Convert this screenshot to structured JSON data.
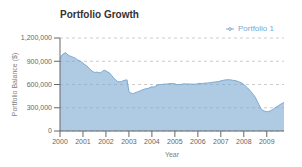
{
  "chart_data": {
    "type": "area",
    "title": "Portfolio Growth",
    "xlabel": "Year",
    "ylabel": "Portfolio Balance ($)",
    "x": [
      2000.0,
      2000.083,
      2000.167,
      2000.25,
      2000.333,
      2000.417,
      2000.5,
      2000.583,
      2000.667,
      2000.75,
      2000.833,
      2000.917,
      2001.0,
      2001.083,
      2001.167,
      2001.25,
      2001.333,
      2001.417,
      2001.5,
      2001.583,
      2001.667,
      2001.75,
      2001.833,
      2001.917,
      2002.0,
      2002.083,
      2002.167,
      2002.25,
      2002.333,
      2002.417,
      2002.5,
      2002.583,
      2002.667,
      2002.75,
      2002.833,
      2002.917,
      2003.0,
      2003.083,
      2003.167,
      2003.25,
      2003.333,
      2003.417,
      2003.5,
      2003.583,
      2003.667,
      2003.75,
      2003.833,
      2003.917,
      2004.0,
      2004.083,
      2004.167,
      2004.25,
      2004.333,
      2004.417,
      2004.5,
      2004.583,
      2004.667,
      2004.75,
      2004.833,
      2004.917,
      2005.0,
      2005.083,
      2005.167,
      2005.25,
      2005.333,
      2005.417,
      2005.5,
      2005.583,
      2005.667,
      2005.75,
      2005.833,
      2005.917,
      2006.0,
      2006.083,
      2006.167,
      2006.25,
      2006.333,
      2006.417,
      2006.5,
      2006.583,
      2006.667,
      2006.75,
      2006.833,
      2006.917,
      2007.0,
      2007.083,
      2007.167,
      2007.25,
      2007.333,
      2007.417,
      2007.5,
      2007.583,
      2007.667,
      2007.75,
      2007.833,
      2007.917,
      2008.0,
      2008.083,
      2008.167,
      2008.25,
      2008.333,
      2008.417,
      2008.5,
      2008.583,
      2008.667,
      2008.75,
      2008.833,
      2008.917,
      2009.0,
      2009.083,
      2009.167,
      2009.25,
      2009.333,
      2009.417,
      2009.5,
      2009.583,
      2009.667,
      2009.75
    ],
    "series": [
      {
        "name": "Portfolio 1",
        "color": "#7aa8d2",
        "values": [
          930000,
          980000,
          1000000,
          1010000,
          985000,
          970000,
          960000,
          950000,
          940000,
          920000,
          910000,
          895000,
          875000,
          855000,
          840000,
          815000,
          790000,
          770000,
          755000,
          760000,
          755000,
          750000,
          765000,
          785000,
          775000,
          760000,
          745000,
          715000,
          685000,
          660000,
          640000,
          635000,
          635000,
          650000,
          655000,
          660000,
          510000,
          490000,
          482000,
          490000,
          500000,
          510000,
          520000,
          530000,
          540000,
          545000,
          550000,
          560000,
          570000,
          565000,
          580000,
          595000,
          600000,
          600000,
          605000,
          605000,
          608000,
          610000,
          612000,
          612000,
          608000,
          598000,
          600000,
          600000,
          605000,
          610000,
          605000,
          608000,
          605000,
          605000,
          603000,
          605000,
          610000,
          615000,
          613000,
          615000,
          618000,
          620000,
          623000,
          626000,
          630000,
          632000,
          635000,
          638000,
          648000,
          652000,
          658000,
          660000,
          662000,
          660000,
          655000,
          652000,
          648000,
          638000,
          630000,
          618000,
          600000,
          578000,
          555000,
          528000,
          500000,
          468000,
          435000,
          385000,
          335000,
          285000,
          265000,
          255000,
          248000,
          252000,
          262000,
          275000,
          292000,
          310000,
          325000,
          342000,
          355000,
          368000
        ]
      }
    ],
    "xlim": [
      2000.0,
      2009.75
    ],
    "xticks": [
      2000,
      2001,
      2002,
      2003,
      2004,
      2005,
      2006,
      2007,
      2008,
      2009
    ],
    "ylim": [
      0,
      1200000
    ],
    "yticks": [
      0,
      {
        "value": 300000,
        "label": "300,000"
      },
      {
        "value": 600000,
        "label": "600,000"
      },
      {
        "value": 900000,
        "label": "900,000"
      },
      {
        "value": 1200000,
        "label": "1,200,000"
      }
    ],
    "grid": true,
    "legend": "upper right"
  }
}
